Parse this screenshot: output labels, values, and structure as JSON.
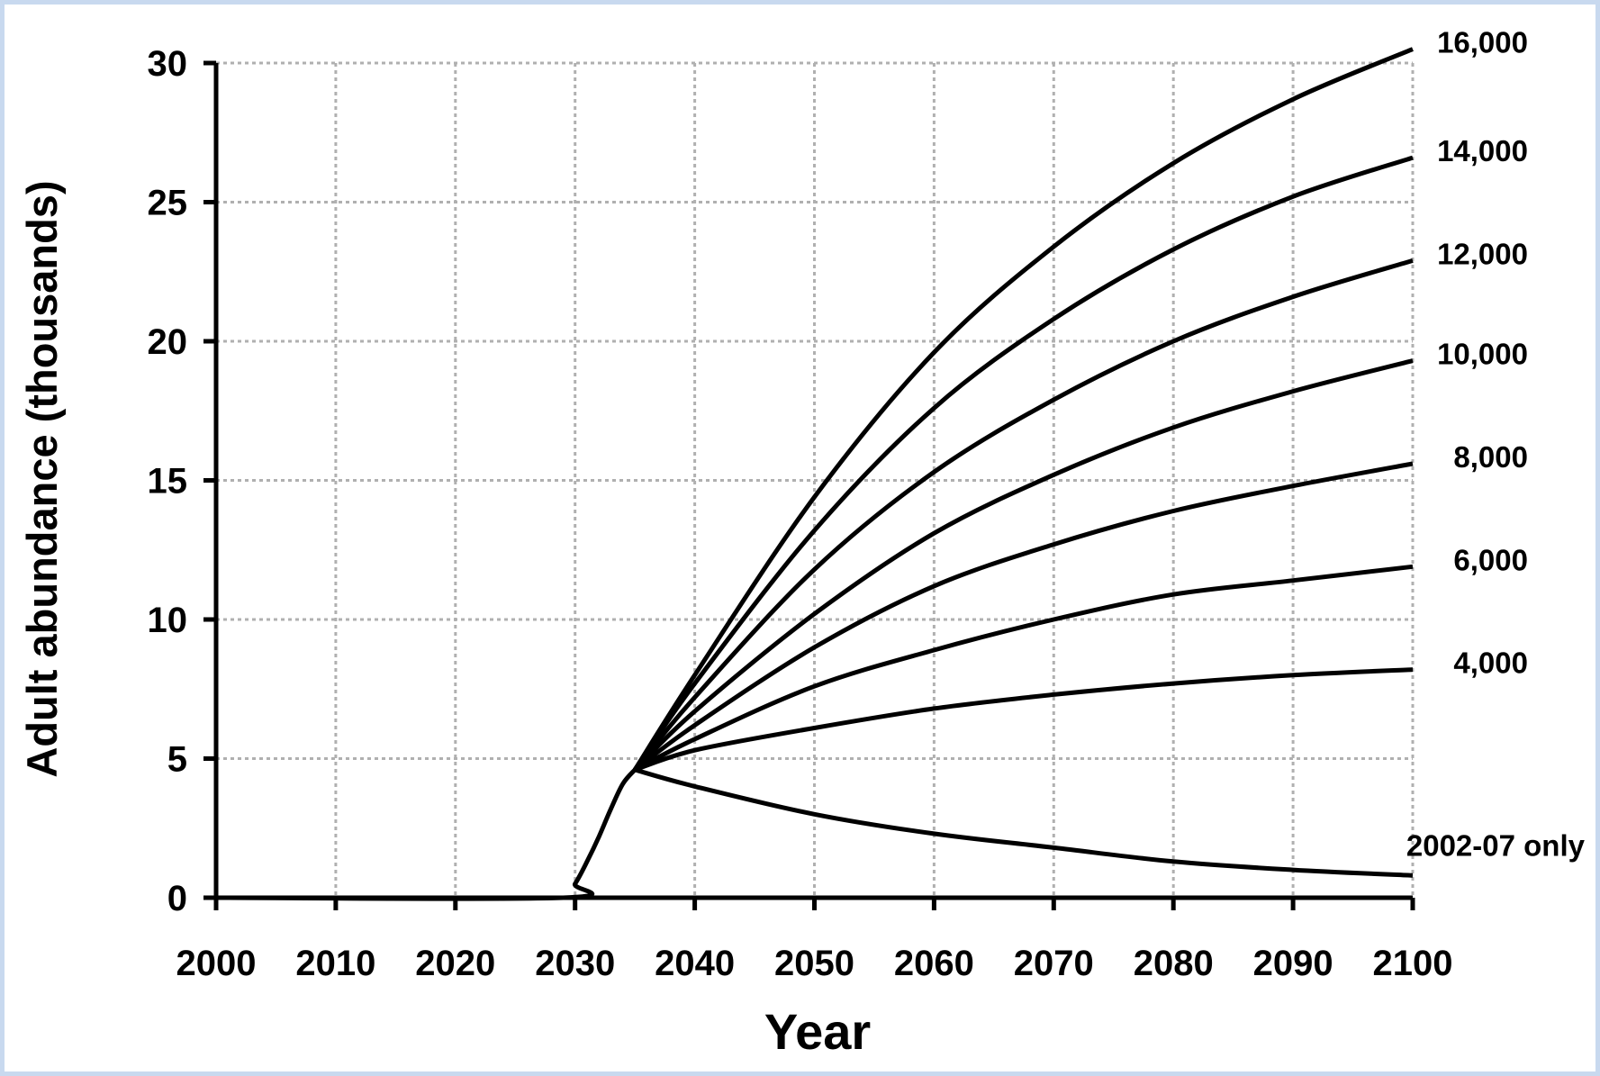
{
  "chart_data": {
    "type": "line",
    "title": "",
    "xlabel": "Year",
    "ylabel": "Adult abundance (thousands)",
    "xlim": [
      2000,
      2100
    ],
    "ylim": [
      0,
      30
    ],
    "x_ticks": [
      2000,
      2010,
      2020,
      2030,
      2040,
      2050,
      2060,
      2070,
      2080,
      2090,
      2100
    ],
    "y_ticks": [
      0,
      5,
      10,
      15,
      20,
      25,
      30
    ],
    "grid": true,
    "legend": "none (series labeled at right end of lines)",
    "line_color": "#000000",
    "ramp": {
      "x": [
        2000,
        2029,
        2030,
        2031,
        2032,
        2033,
        2034,
        2035
      ],
      "y": [
        0,
        0,
        0.5,
        1.3,
        2.2,
        3.2,
        4.1,
        4.6
      ]
    },
    "series": [
      {
        "name": "16,000",
        "x": [
          2035,
          2040,
          2050,
          2060,
          2070,
          2080,
          2090,
          2100
        ],
        "y": [
          4.6,
          8.0,
          14.4,
          19.6,
          23.4,
          26.4,
          28.7,
          30.5
        ]
      },
      {
        "name": "14,000",
        "x": [
          2035,
          2040,
          2050,
          2060,
          2070,
          2080,
          2090,
          2100
        ],
        "y": [
          4.6,
          7.7,
          13.2,
          17.6,
          20.8,
          23.3,
          25.2,
          26.6
        ]
      },
      {
        "name": "12,000",
        "x": [
          2035,
          2040,
          2050,
          2060,
          2070,
          2080,
          2090,
          2100
        ],
        "y": [
          4.6,
          7.2,
          11.8,
          15.3,
          17.9,
          20.0,
          21.6,
          22.9
        ]
      },
      {
        "name": "10,000",
        "x": [
          2035,
          2040,
          2050,
          2060,
          2070,
          2080,
          2090,
          2100
        ],
        "y": [
          4.6,
          6.7,
          10.2,
          13.1,
          15.2,
          16.9,
          18.2,
          19.3
        ]
      },
      {
        "name": "8,000",
        "x": [
          2035,
          2040,
          2050,
          2060,
          2070,
          2080,
          2090,
          2100
        ],
        "y": [
          4.6,
          6.2,
          9.0,
          11.2,
          12.7,
          13.9,
          14.8,
          15.6
        ]
      },
      {
        "name": "6,000",
        "x": [
          2035,
          2040,
          2050,
          2060,
          2070,
          2080,
          2090,
          2100
        ],
        "y": [
          4.6,
          5.7,
          7.6,
          8.9,
          10.0,
          10.9,
          11.4,
          11.9
        ]
      },
      {
        "name": "4,000",
        "x": [
          2035,
          2040,
          2050,
          2060,
          2070,
          2080,
          2090,
          2100
        ],
        "y": [
          4.6,
          5.3,
          6.1,
          6.8,
          7.3,
          7.7,
          8.0,
          8.2
        ]
      },
      {
        "name": "2002-07 only",
        "x": [
          2035,
          2040,
          2050,
          2060,
          2070,
          2080,
          2090,
          2100
        ],
        "y": [
          4.6,
          4.0,
          3.0,
          2.3,
          1.8,
          1.3,
          1.0,
          0.8
        ]
      }
    ]
  }
}
